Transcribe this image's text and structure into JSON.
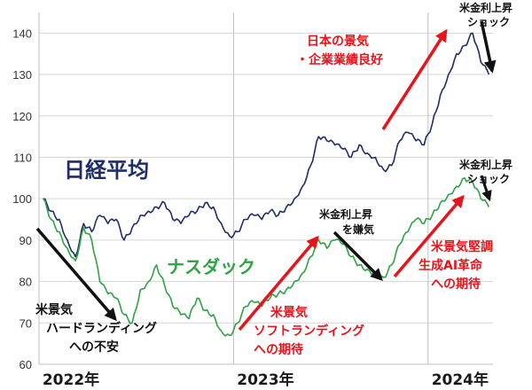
{
  "colors": {
    "nikkei": "#1f2d6b",
    "nasdaq": "#2ea343",
    "red": "#e8141c",
    "black": "#111111",
    "grid": "#d7d7d7",
    "divider": "#bfbfbf"
  },
  "chart_data": {
    "type": "line",
    "ylim": [
      60,
      145
    ],
    "yticks": [
      60,
      70,
      80,
      90,
      100,
      110,
      120,
      130,
      140
    ],
    "xlim": [
      "2022-01",
      "2024-05"
    ],
    "xtick_labels": [
      {
        "x": "2022-01",
        "label": "2022年"
      },
      {
        "x": "2023-01",
        "label": "2023年"
      },
      {
        "x": "2024-01",
        "label": "2024年"
      }
    ],
    "grid": true,
    "series": [
      {
        "name": "日経平均",
        "x": [
          "2022-01",
          "2022-01",
          "2022-02",
          "2022-02",
          "2022-03",
          "2022-03",
          "2022-04",
          "2022-04",
          "2022-05",
          "2022-05",
          "2022-06",
          "2022-06",
          "2022-07",
          "2022-07",
          "2022-08",
          "2022-08",
          "2022-09",
          "2022-09",
          "2022-10",
          "2022-10",
          "2022-11",
          "2022-11",
          "2022-12",
          "2022-12",
          "2023-01",
          "2023-01",
          "2023-02",
          "2023-02",
          "2023-03",
          "2023-03",
          "2023-04",
          "2023-04",
          "2023-05",
          "2023-05",
          "2023-06",
          "2023-06",
          "2023-07",
          "2023-07",
          "2023-08",
          "2023-08",
          "2023-09",
          "2023-09",
          "2023-10",
          "2023-10",
          "2023-11",
          "2023-11",
          "2023-12",
          "2023-12",
          "2024-01",
          "2024-01",
          "2024-02",
          "2024-02",
          "2024-03",
          "2024-03",
          "2024-04",
          "2024-04"
        ],
        "values": [
          100,
          97,
          95,
          90,
          86,
          94,
          92,
          96,
          94,
          95,
          90,
          93,
          96,
          97,
          98,
          99,
          95,
          94,
          96,
          97,
          99,
          98,
          94,
          91,
          92,
          95,
          96,
          95,
          97,
          96,
          98,
          100,
          103,
          108,
          115,
          114,
          113,
          112,
          110,
          113,
          111,
          110,
          107,
          108,
          114,
          116,
          114,
          113,
          118,
          125,
          130,
          135,
          137,
          140,
          133,
          130
        ]
      },
      {
        "name": "ナスダック",
        "x": [
          "2022-01",
          "2022-01",
          "2022-02",
          "2022-02",
          "2022-03",
          "2022-03",
          "2022-04",
          "2022-04",
          "2022-05",
          "2022-05",
          "2022-06",
          "2022-06",
          "2022-07",
          "2022-07",
          "2022-08",
          "2022-08",
          "2022-09",
          "2022-09",
          "2022-10",
          "2022-10",
          "2022-11",
          "2022-11",
          "2022-12",
          "2022-12",
          "2023-01",
          "2023-01",
          "2023-02",
          "2023-02",
          "2023-03",
          "2023-03",
          "2023-04",
          "2023-04",
          "2023-05",
          "2023-05",
          "2023-06",
          "2023-06",
          "2023-07",
          "2023-07",
          "2023-08",
          "2023-08",
          "2023-09",
          "2023-09",
          "2023-10",
          "2023-10",
          "2023-11",
          "2023-11",
          "2023-12",
          "2023-12",
          "2024-01",
          "2024-01",
          "2024-02",
          "2024-02",
          "2024-03",
          "2024-03",
          "2024-04",
          "2024-04"
        ],
        "values": [
          100,
          95,
          92,
          88,
          85,
          93,
          90,
          80,
          77,
          76,
          72,
          70,
          78,
          80,
          84,
          79,
          74,
          72,
          71,
          76,
          73,
          72,
          68,
          67,
          70,
          74,
          75,
          74,
          76,
          77,
          78,
          80,
          82,
          86,
          90,
          88,
          90,
          89,
          86,
          84,
          83,
          82,
          81,
          84,
          89,
          92,
          95,
          94,
          96,
          99,
          101,
          103,
          105,
          104,
          100,
          98
        ]
      }
    ],
    "series_labels": {
      "nikkei": "日経平均",
      "nasdaq": "ナスダック"
    },
    "annotations": {
      "nikkei_rally": [
        "日本の景気",
        "・企業業績良好"
      ],
      "nikkei_top": [
        "米金利上昇",
        "ショック"
      ],
      "nasdaq_top": [
        "米金利上昇",
        "ショック"
      ],
      "mid_dip": [
        "米金利上昇",
        "を嫌気"
      ],
      "hard_landing": [
        "米景気",
        "ハードランディング",
        "への不安"
      ],
      "soft_landing": [
        "米景気",
        "ソフトランディング",
        "への期待"
      ],
      "ai_revolution": [
        "米景気堅調",
        "生成AI革命",
        "への期待"
      ]
    }
  }
}
